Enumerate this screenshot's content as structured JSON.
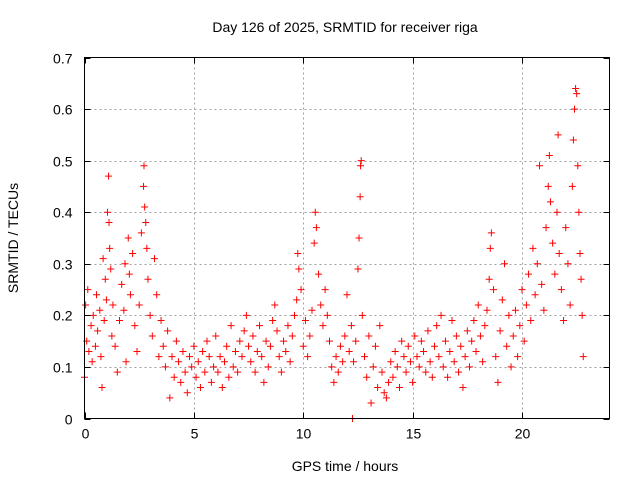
{
  "chart_data": {
    "type": "scatter",
    "title": "Day 126 of 2025, SRMTID for receiver riga",
    "xlabel": "GPS time / hours",
    "ylabel": "SRMTID / TECUs",
    "xlim": [
      0,
      24
    ],
    "ylim": [
      0,
      0.7
    ],
    "grid": true,
    "legend": "none",
    "marker": "+",
    "color": "#ff0000",
    "x_ticks": [
      {
        "value": 0,
        "label": "0"
      },
      {
        "value": 5,
        "label": "5"
      },
      {
        "value": 10,
        "label": "10"
      },
      {
        "value": 15,
        "label": "15"
      },
      {
        "value": 20,
        "label": "20"
      }
    ],
    "y_ticks": [
      {
        "value": 0,
        "label": "0"
      },
      {
        "value": 0.1,
        "label": "0.1"
      },
      {
        "value": 0.2,
        "label": "0.2"
      },
      {
        "value": 0.3,
        "label": "0.3"
      },
      {
        "value": 0.4,
        "label": "0.4"
      },
      {
        "value": 0.5,
        "label": "0.5"
      },
      {
        "value": 0.6,
        "label": "0.6"
      },
      {
        "value": 0.7,
        "label": "0.7"
      }
    ],
    "series": [
      {
        "name": "SRMTID",
        "points": [
          [
            0.0,
            0.08
          ],
          [
            0.05,
            0.22
          ],
          [
            0.1,
            0.15
          ],
          [
            0.15,
            0.25
          ],
          [
            0.2,
            0.13
          ],
          [
            0.3,
            0.18
          ],
          [
            0.35,
            0.11
          ],
          [
            0.4,
            0.2
          ],
          [
            0.5,
            0.14
          ],
          [
            0.55,
            0.24
          ],
          [
            0.6,
            0.17
          ],
          [
            0.7,
            0.21
          ],
          [
            0.75,
            0.12
          ],
          [
            0.8,
            0.06
          ],
          [
            0.85,
            0.31
          ],
          [
            0.9,
            0.19
          ],
          [
            0.95,
            0.27
          ],
          [
            1.0,
            0.23
          ],
          [
            1.05,
            0.4
          ],
          [
            1.1,
            0.47
          ],
          [
            1.12,
            0.38
          ],
          [
            1.15,
            0.33
          ],
          [
            1.2,
            0.29
          ],
          [
            1.25,
            0.16
          ],
          [
            1.3,
            0.22
          ],
          [
            1.4,
            0.14
          ],
          [
            1.5,
            0.09
          ],
          [
            1.6,
            0.19
          ],
          [
            1.7,
            0.26
          ],
          [
            1.8,
            0.21
          ],
          [
            1.85,
            0.3
          ],
          [
            1.9,
            0.11
          ],
          [
            2.0,
            0.35
          ],
          [
            2.05,
            0.28
          ],
          [
            2.1,
            0.24
          ],
          [
            2.2,
            0.32
          ],
          [
            2.3,
            0.18
          ],
          [
            2.4,
            0.13
          ],
          [
            2.5,
            0.22
          ],
          [
            2.6,
            0.36
          ],
          [
            2.7,
            0.45
          ],
          [
            2.72,
            0.49
          ],
          [
            2.75,
            0.41
          ],
          [
            2.8,
            0.38
          ],
          [
            2.85,
            0.33
          ],
          [
            2.9,
            0.27
          ],
          [
            3.0,
            0.2
          ],
          [
            3.1,
            0.16
          ],
          [
            3.2,
            0.31
          ],
          [
            3.3,
            0.24
          ],
          [
            3.4,
            0.12
          ],
          [
            3.5,
            0.19
          ],
          [
            3.6,
            0.14
          ],
          [
            3.7,
            0.1
          ],
          [
            3.8,
            0.17
          ],
          [
            3.9,
            0.04
          ],
          [
            4.0,
            0.12
          ],
          [
            4.1,
            0.08
          ],
          [
            4.2,
            0.15
          ],
          [
            4.3,
            0.11
          ],
          [
            4.4,
            0.07
          ],
          [
            4.5,
            0.13
          ],
          [
            4.6,
            0.09
          ],
          [
            4.7,
            0.05
          ],
          [
            4.8,
            0.12
          ],
          [
            4.9,
            0.1
          ],
          [
            5.0,
            0.14
          ],
          [
            5.1,
            0.08
          ],
          [
            5.2,
            0.11
          ],
          [
            5.3,
            0.06
          ],
          [
            5.4,
            0.13
          ],
          [
            5.5,
            0.09
          ],
          [
            5.6,
            0.15
          ],
          [
            5.7,
            0.12
          ],
          [
            5.8,
            0.07
          ],
          [
            5.9,
            0.1
          ],
          [
            6.0,
            0.16
          ],
          [
            6.1,
            0.09
          ],
          [
            6.2,
            0.12
          ],
          [
            6.3,
            0.06
          ],
          [
            6.4,
            0.11
          ],
          [
            6.5,
            0.14
          ],
          [
            6.6,
            0.08
          ],
          [
            6.7,
            0.18
          ],
          [
            6.8,
            0.1
          ],
          [
            6.9,
            0.13
          ],
          [
            7.0,
            0.09
          ],
          [
            7.1,
            0.15
          ],
          [
            7.2,
            0.12
          ],
          [
            7.3,
            0.17
          ],
          [
            7.4,
            0.2
          ],
          [
            7.5,
            0.14
          ],
          [
            7.6,
            0.11
          ],
          [
            7.7,
            0.16
          ],
          [
            7.8,
            0.09
          ],
          [
            7.9,
            0.13
          ],
          [
            8.0,
            0.18
          ],
          [
            8.1,
            0.12
          ],
          [
            8.2,
            0.07
          ],
          [
            8.3,
            0.15
          ],
          [
            8.4,
            0.1
          ],
          [
            8.5,
            0.14
          ],
          [
            8.6,
            0.19
          ],
          [
            8.7,
            0.22
          ],
          [
            8.8,
            0.17
          ],
          [
            8.9,
            0.12
          ],
          [
            9.0,
            0.09
          ],
          [
            9.1,
            0.15
          ],
          [
            9.2,
            0.13
          ],
          [
            9.3,
            0.18
          ],
          [
            9.4,
            0.11
          ],
          [
            9.5,
            0.16
          ],
          [
            9.6,
            0.2
          ],
          [
            9.7,
            0.23
          ],
          [
            9.75,
            0.32
          ],
          [
            9.8,
            0.29
          ],
          [
            9.9,
            0.25
          ],
          [
            10.0,
            0.14
          ],
          [
            10.1,
            0.19
          ],
          [
            10.2,
            0.12
          ],
          [
            10.3,
            0.16
          ],
          [
            10.4,
            0.21
          ],
          [
            10.5,
            0.34
          ],
          [
            10.55,
            0.4
          ],
          [
            10.6,
            0.37
          ],
          [
            10.7,
            0.28
          ],
          [
            10.8,
            0.22
          ],
          [
            10.9,
            0.18
          ],
          [
            11.0,
            0.25
          ],
          [
            11.1,
            0.2
          ],
          [
            11.2,
            0.15
          ],
          [
            11.3,
            0.1
          ],
          [
            11.4,
            0.07
          ],
          [
            11.5,
            0.12
          ],
          [
            11.6,
            0.09
          ],
          [
            11.7,
            0.14
          ],
          [
            11.8,
            0.11
          ],
          [
            11.9,
            0.16
          ],
          [
            12.0,
            0.24
          ],
          [
            12.1,
            0.13
          ],
          [
            12.2,
            0.18
          ],
          [
            12.25,
            0.0
          ],
          [
            12.3,
            0.11
          ],
          [
            12.4,
            0.15
          ],
          [
            12.5,
            0.29
          ],
          [
            12.55,
            0.35
          ],
          [
            12.6,
            0.43
          ],
          [
            12.62,
            0.49
          ],
          [
            12.65,
            0.5
          ],
          [
            12.7,
            0.2
          ],
          [
            12.8,
            0.12
          ],
          [
            12.9,
            0.08
          ],
          [
            13.0,
            0.16
          ],
          [
            13.1,
            0.03
          ],
          [
            13.2,
            0.1
          ],
          [
            13.3,
            0.14
          ],
          [
            13.4,
            0.06
          ],
          [
            13.5,
            0.18
          ],
          [
            13.6,
            0.09
          ],
          [
            13.7,
            0.05
          ],
          [
            13.8,
            0.04
          ],
          [
            13.9,
            0.07
          ],
          [
            14.0,
            0.11
          ],
          [
            14.1,
            0.08
          ],
          [
            14.2,
            0.13
          ],
          [
            14.3,
            0.1
          ],
          [
            14.4,
            0.06
          ],
          [
            14.5,
            0.15
          ],
          [
            14.6,
            0.12
          ],
          [
            14.7,
            0.09
          ],
          [
            14.8,
            0.14
          ],
          [
            14.9,
            0.11
          ],
          [
            15.0,
            0.07
          ],
          [
            15.1,
            0.16
          ],
          [
            15.2,
            0.12
          ],
          [
            15.3,
            0.1
          ],
          [
            15.4,
            0.15
          ],
          [
            15.5,
            0.13
          ],
          [
            15.6,
            0.09
          ],
          [
            15.7,
            0.17
          ],
          [
            15.8,
            0.11
          ],
          [
            15.9,
            0.08
          ],
          [
            16.0,
            0.14
          ],
          [
            16.1,
            0.18
          ],
          [
            16.2,
            0.12
          ],
          [
            16.3,
            0.2
          ],
          [
            16.4,
            0.1
          ],
          [
            16.5,
            0.15
          ],
          [
            16.6,
            0.08
          ],
          [
            16.7,
            0.13
          ],
          [
            16.8,
            0.19
          ],
          [
            16.9,
            0.11
          ],
          [
            17.0,
            0.16
          ],
          [
            17.1,
            0.09
          ],
          [
            17.2,
            0.14
          ],
          [
            17.3,
            0.06
          ],
          [
            17.4,
            0.12
          ],
          [
            17.5,
            0.17
          ],
          [
            17.6,
            0.1
          ],
          [
            17.7,
            0.15
          ],
          [
            17.8,
            0.19
          ],
          [
            17.9,
            0.13
          ],
          [
            18.0,
            0.22
          ],
          [
            18.1,
            0.16
          ],
          [
            18.2,
            0.11
          ],
          [
            18.3,
            0.18
          ],
          [
            18.4,
            0.21
          ],
          [
            18.5,
            0.27
          ],
          [
            18.55,
            0.33
          ],
          [
            18.6,
            0.36
          ],
          [
            18.7,
            0.25
          ],
          [
            18.8,
            0.12
          ],
          [
            18.9,
            0.07
          ],
          [
            19.0,
            0.17
          ],
          [
            19.1,
            0.23
          ],
          [
            19.2,
            0.3
          ],
          [
            19.3,
            0.14
          ],
          [
            19.4,
            0.2
          ],
          [
            19.5,
            0.1
          ],
          [
            19.6,
            0.16
          ],
          [
            19.7,
            0.21
          ],
          [
            19.8,
            0.12
          ],
          [
            19.9,
            0.18
          ],
          [
            20.0,
            0.25
          ],
          [
            20.1,
            0.15
          ],
          [
            20.2,
            0.22
          ],
          [
            20.3,
            0.28
          ],
          [
            20.4,
            0.19
          ],
          [
            20.5,
            0.33
          ],
          [
            20.6,
            0.24
          ],
          [
            20.7,
            0.3
          ],
          [
            20.8,
            0.49
          ],
          [
            20.9,
            0.26
          ],
          [
            21.0,
            0.21
          ],
          [
            21.1,
            0.37
          ],
          [
            21.2,
            0.45
          ],
          [
            21.25,
            0.51
          ],
          [
            21.3,
            0.42
          ],
          [
            21.4,
            0.34
          ],
          [
            21.5,
            0.28
          ],
          [
            21.6,
            0.4
          ],
          [
            21.65,
            0.55
          ],
          [
            21.7,
            0.32
          ],
          [
            21.8,
            0.25
          ],
          [
            21.9,
            0.19
          ],
          [
            22.0,
            0.37
          ],
          [
            22.1,
            0.3
          ],
          [
            22.2,
            0.22
          ],
          [
            22.3,
            0.45
          ],
          [
            22.35,
            0.54
          ],
          [
            22.4,
            0.6
          ],
          [
            22.45,
            0.64
          ],
          [
            22.5,
            0.63
          ],
          [
            22.55,
            0.49
          ],
          [
            22.6,
            0.4
          ],
          [
            22.65,
            0.32
          ],
          [
            22.7,
            0.27
          ],
          [
            22.75,
            0.2
          ],
          [
            22.8,
            0.12
          ]
        ]
      }
    ]
  }
}
